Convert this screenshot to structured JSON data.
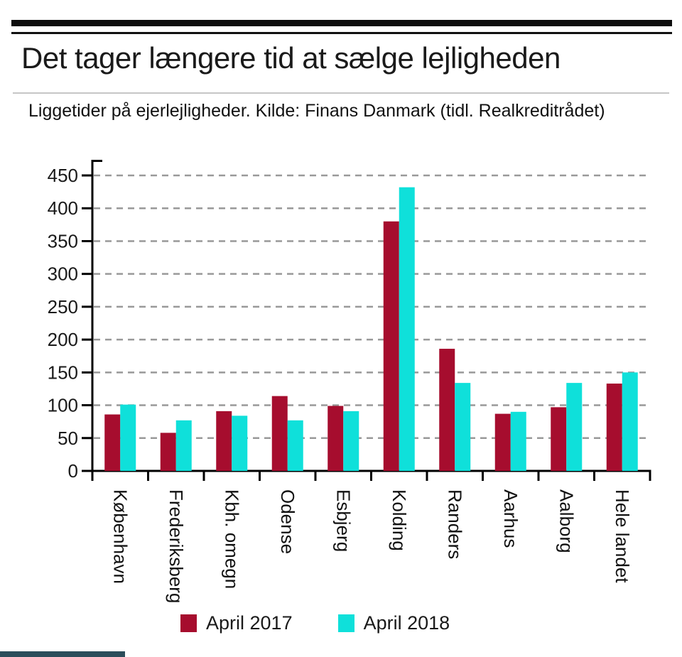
{
  "header": {
    "title": "Det tager længere tid at sælge lejligheden",
    "subtitle": "Liggetider på ejerlejligheder. Kilde: Finans Danmark (tidl. Realkreditrådet)"
  },
  "chart_data": {
    "type": "bar",
    "title": "Det tager længere tid at sælge lejligheden",
    "subtitle": "Liggetider på ejerlejligheder. Kilde: Finans Danmark (tidl. Realkreditrådet)",
    "categories": [
      "København",
      "Frederiksberg",
      "Kbh. omegn",
      "Odense",
      "Esbjerg",
      "Kolding",
      "Randers",
      "Aarhus",
      "Aalborg",
      "Hele landet"
    ],
    "series": [
      {
        "name": "April 2017",
        "color": "#a60d2e",
        "values": [
          86,
          58,
          91,
          114,
          99,
          380,
          186,
          87,
          97,
          133
        ]
      },
      {
        "name": "April 2018",
        "color": "#0fe0da",
        "values": [
          101,
          77,
          84,
          77,
          91,
          432,
          134,
          90,
          134,
          150
        ]
      }
    ],
    "xlabel": "",
    "ylabel": "",
    "ylim": [
      0,
      450
    ],
    "yticks": [
      0,
      50,
      100,
      150,
      200,
      250,
      300,
      350,
      400,
      450
    ],
    "grid": "horizontal dashed",
    "gridline_color": "#999999",
    "axis_color": "#000000",
    "tick_label_color": "#1a1a1a",
    "legend_position": "bottom"
  },
  "footer": {
    "strip_color": "#2b4d5a"
  }
}
